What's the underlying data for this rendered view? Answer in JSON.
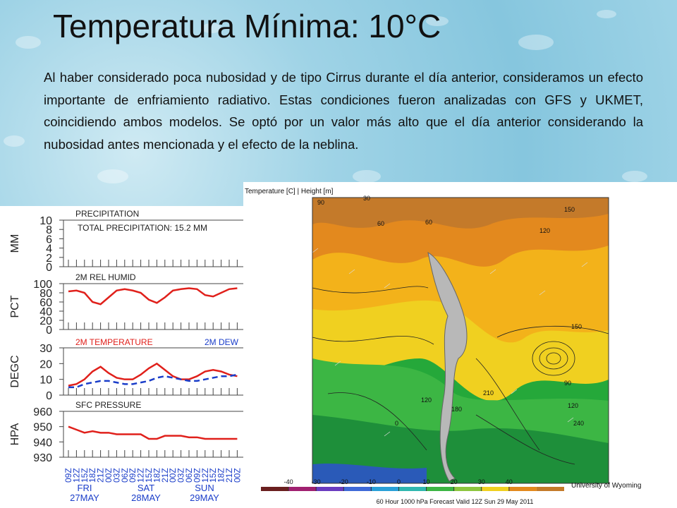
{
  "slide": {
    "title": "Temperatura Mínima: 10°C",
    "body": "Al haber considerado poca nubosidad y de tipo Cirrus durante el día anterior, consideramos un efecto importante de enfriamiento radiativo. Estas condiciones fueron analizadas con GFS y UKMET, coincidiendo ambos modelos. Se optó por un valor más alto que el día anterior considerando la nubosidad antes mencionada y el efecto de la neblina."
  },
  "meteogram": {
    "times": [
      "09Z",
      "12Z",
      "15Z",
      "18Z",
      "21Z",
      "00Z",
      "03Z",
      "06Z",
      "09Z",
      "12Z",
      "15Z",
      "18Z",
      "21Z",
      "00Z",
      "03Z",
      "06Z",
      "09Z",
      "12Z",
      "15Z",
      "18Z",
      "21Z",
      "00Z"
    ],
    "days": [
      {
        "name": "FRI",
        "date": "27MAY"
      },
      {
        "name": "SAT",
        "date": "28MAY"
      },
      {
        "name": "SUN",
        "date": "29MAY"
      }
    ],
    "panels": [
      {
        "unit": "MM",
        "title": "PRECIPITATION",
        "subtitle": "TOTAL PRECIPITATION:  15.2 MM",
        "ylim": [
          0,
          10
        ],
        "yticks": [
          0,
          2,
          4,
          6,
          8,
          10
        ],
        "series": []
      },
      {
        "unit": "PCT",
        "title": "2M REL HUMID",
        "ylim": [
          0,
          100
        ],
        "yticks": [
          0,
          20,
          40,
          60,
          80,
          100
        ],
        "series": [
          {
            "color": "#e0201b",
            "dashed": false,
            "values": [
              83,
              85,
              80,
              60,
              55,
              70,
              85,
              88,
              85,
              80,
              65,
              58,
              70,
              85,
              88,
              90,
              88,
              75,
              72,
              80,
              88,
              90
            ]
          }
        ]
      },
      {
        "unit": "DEGC",
        "ylim": [
          0,
          30
        ],
        "yticks": [
          0,
          10,
          20,
          30
        ],
        "series": [
          {
            "name": "2M TEMPERATURE",
            "color": "#e0201b",
            "dashed": false,
            "values": [
              6,
              7,
              10,
              15,
              18,
              14,
              11,
              10,
              10,
              13,
              17,
              20,
              16,
              12,
              10,
              10,
              12,
              15,
              16,
              15,
              13,
              12
            ]
          },
          {
            "name": "2M  DEW",
            "color": "#1a3dc9",
            "dashed": true,
            "values": [
              5,
              5,
              7,
              8,
              9,
              9,
              8,
              7,
              7,
              8,
              9,
              11,
              12,
              11,
              10,
              9,
              9,
              10,
              11,
              12,
              12,
              13
            ]
          }
        ]
      },
      {
        "unit": "HPA",
        "title": "SFC PRESSURE",
        "ylim": [
          930,
          960
        ],
        "yticks": [
          930,
          940,
          950,
          960
        ],
        "series": [
          {
            "color": "#e0201b",
            "dashed": false,
            "values": [
              950,
              948,
              946,
              947,
              946,
              946,
              945,
              945,
              945,
              945,
              942,
              942,
              944,
              944,
              944,
              943,
              943,
              942,
              942,
              942,
              942,
              942
            ]
          }
        ]
      }
    ]
  },
  "map": {
    "title": "Temperature [C] | Height [m]",
    "colorbar": {
      "ticks": [
        -40,
        -30,
        -20,
        -10,
        0,
        10,
        20,
        30,
        40
      ]
    },
    "caption": "60 Hour 1000 hPa Forecast Valid 12Z Sun 29 May 2011",
    "credit": "University of Wyoming",
    "contour_labels": [
      "30",
      "60",
      "90",
      "150",
      "120",
      "150",
      "90",
      "120",
      "60",
      "210",
      "120",
      "180",
      "240",
      "0"
    ]
  }
}
